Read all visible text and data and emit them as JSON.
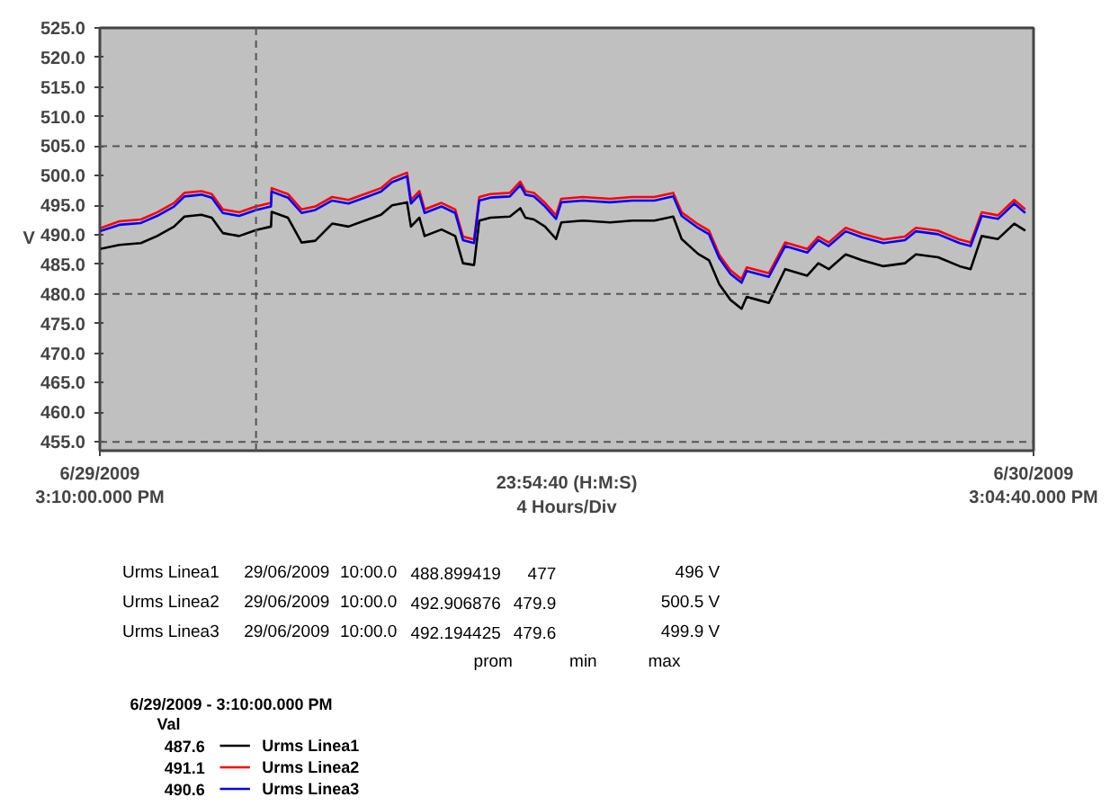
{
  "chart_data": {
    "type": "line",
    "xlabel": "23:54:40 (H:M:S)\n4 Hours/Div",
    "ylabel": "V",
    "legend_title": "6/29/2009 - 3:10:00.000 PM",
    "legend": "bottom left",
    "grid": false,
    "line_style": "solid",
    "marker": "none",
    "xlim": [
      "2009-06-29T15:10",
      "2009-06-30T15:04:40"
    ],
    "xticks": [
      {
        "value": "2009-06-29T15:10",
        "label": "6/29/2009\n3:10:00.000 PM"
      },
      {
        "value": "2009-06-30T15:04:40",
        "label": "6/30/2009\n3:04:40.000 PM"
      }
    ],
    "ylim": [
      453.5,
      525
    ],
    "yticks": [
      {
        "value": 455,
        "label": "455.0"
      },
      {
        "value": 460,
        "label": "460.0"
      },
      {
        "value": 465,
        "label": "465.0"
      },
      {
        "value": 470,
        "label": "470.0"
      },
      {
        "value": 475,
        "label": "475.0"
      },
      {
        "value": 480,
        "label": "480.0"
      },
      {
        "value": 485,
        "label": "485.0"
      },
      {
        "value": 490,
        "label": "490.0"
      },
      {
        "value": 495,
        "label": "495.0"
      },
      {
        "value": 500,
        "label": "500.0"
      },
      {
        "value": 505,
        "label": "505.0"
      },
      {
        "value": 510,
        "label": "510.0"
      },
      {
        "value": 515,
        "label": "515.0"
      },
      {
        "value": 520,
        "label": "520.0"
      },
      {
        "value": 525,
        "label": "525.0"
      }
    ],
    "ref_lines": [
      {
        "axis": "y",
        "value": 455,
        "line_style": "dashed",
        "color": "#555555"
      },
      {
        "axis": "y",
        "value": 480,
        "line_style": "dashed",
        "color": "#555555"
      },
      {
        "axis": "y",
        "value": 505,
        "line_style": "dashed",
        "color": "#555555"
      },
      {
        "axis": "x",
        "value": "2009-06-29T19:10",
        "line_style": "dashed",
        "color": "#555555"
      }
    ],
    "annotations": [
      "Urms Linea1\t29/06/2009\t10:00.0\t488.899419\t477\t496 V",
      "Urms Linea2\t29/06/2009\t10:00.0\t492.906876\t479.9\t500.5 V",
      "Urms Linea3\t29/06/2009\t10:00.0\t492.194425\t479.6\t499.9 V",
      "\t\t\tprom\tmin\tmax",
      "Val",
      "487.6",
      "491.1",
      "490.6"
    ],
    "x": [
      "2009-06-29T15:10",
      "2009-06-29T15:40",
      "2009-06-29T16:13",
      "2009-06-29T16:38",
      "2009-06-29T17:04",
      "2009-06-29T17:20",
      "2009-06-29T17:46",
      "2009-06-29T18:02",
      "2009-06-29T18:19",
      "2009-06-29T18:44",
      "2009-06-29T19:10",
      "2009-06-29T19:33",
      "2009-06-29T19:34",
      "2009-06-29T19:59",
      "2009-06-29T20:20",
      "2009-06-29T20:41",
      "2009-06-29T21:07",
      "2009-06-29T21:32",
      "2009-06-29T21:57",
      "2009-06-29T22:22",
      "2009-06-29T22:39",
      "2009-06-29T23:02",
      "2009-06-29T23:08",
      "2009-06-29T23:21",
      "2009-06-29T23:29",
      "2009-06-29T23:55",
      "2009-06-30T00:16",
      "2009-06-30T00:28",
      "2009-06-30T00:45",
      "2009-06-30T00:53",
      "2009-06-30T01:10",
      "2009-06-30T01:40",
      "2009-06-30T01:56",
      "2009-06-30T02:04",
      "2009-06-30T02:17",
      "2009-06-30T02:34",
      "2009-06-30T02:51",
      "2009-06-30T02:59",
      "2009-06-30T03:32",
      "2009-06-30T04:14",
      "2009-06-30T04:48",
      "2009-06-30T05:22",
      "2009-06-30T05:51",
      "2009-06-30T06:04",
      "2009-06-30T06:29",
      "2009-06-30T06:46",
      "2009-06-30T07:02",
      "2009-06-30T07:19",
      "2009-06-30T07:36",
      "2009-06-30T07:44",
      "2009-06-30T08:01",
      "2009-06-30T08:18",
      "2009-06-30T08:43",
      "2009-06-30T09:17",
      "2009-06-30T09:34",
      "2009-06-30T09:50",
      "2009-06-30T10:16",
      "2009-06-30T10:41",
      "2009-06-30T11:14",
      "2009-06-30T11:47",
      "2009-06-30T12:04",
      "2009-06-30T12:38",
      "2009-06-30T13:11",
      "2009-06-30T13:28",
      "2009-06-30T13:45",
      "2009-06-30T14:10",
      "2009-06-30T14:35",
      "2009-06-30T14:52"
    ],
    "series": [
      {
        "name": "Urms Linea1",
        "color": "#000000",
        "values": [
          487.6,
          488.3,
          488.6,
          489.8,
          491.4,
          493.1,
          493.4,
          492.9,
          490.3,
          489.8,
          490.8,
          491.4,
          493.9,
          492.9,
          488.7,
          489.0,
          491.9,
          491.4,
          492.4,
          493.4,
          495.0,
          495.5,
          491.4,
          492.9,
          489.8,
          490.9,
          489.8,
          485.2,
          484.9,
          492.4,
          492.9,
          493.1,
          494.5,
          492.9,
          492.6,
          491.4,
          489.3,
          492.1,
          492.4,
          492.1,
          492.4,
          492.4,
          493.1,
          489.3,
          486.8,
          485.7,
          481.6,
          479.0,
          477.5,
          479.5,
          479.0,
          478.5,
          484.2,
          483.1,
          485.2,
          484.2,
          486.7,
          485.7,
          484.7,
          485.2,
          486.7,
          486.2,
          484.7,
          484.2,
          489.8,
          489.3,
          491.9,
          490.7
        ]
      },
      {
        "name": "Urms Linea2",
        "color": "#ff0000",
        "values": [
          491.1,
          492.3,
          492.6,
          493.8,
          495.4,
          497.1,
          497.4,
          496.9,
          494.3,
          493.8,
          494.8,
          495.4,
          497.9,
          496.9,
          494.3,
          494.8,
          496.4,
          495.9,
          496.9,
          497.9,
          499.5,
          500.5,
          495.9,
          497.4,
          494.3,
          495.4,
          494.3,
          489.7,
          489.2,
          496.4,
          496.9,
          497.1,
          499.0,
          497.4,
          497.1,
          495.4,
          493.3,
          496.1,
          496.4,
          496.1,
          496.4,
          496.4,
          497.1,
          493.8,
          491.8,
          490.7,
          486.6,
          484.0,
          482.5,
          484.5,
          484.0,
          483.5,
          488.7,
          487.6,
          489.7,
          488.7,
          491.2,
          490.2,
          489.2,
          489.7,
          491.2,
          490.7,
          489.2,
          488.7,
          493.8,
          493.3,
          495.9,
          494.3
        ]
      },
      {
        "name": "Urms Linea3",
        "color": "#0000ff",
        "values": [
          490.6,
          491.7,
          492.0,
          493.2,
          494.8,
          496.5,
          496.8,
          496.3,
          493.7,
          493.2,
          494.2,
          494.8,
          497.3,
          496.3,
          493.7,
          494.2,
          495.8,
          495.3,
          496.3,
          497.3,
          498.9,
          499.9,
          495.3,
          496.8,
          493.7,
          494.8,
          493.7,
          489.1,
          488.6,
          495.8,
          496.3,
          496.5,
          498.4,
          496.8,
          496.5,
          494.8,
          492.7,
          495.5,
          495.8,
          495.5,
          495.8,
          495.8,
          496.5,
          493.2,
          491.2,
          490.1,
          486.0,
          483.4,
          481.9,
          483.9,
          483.4,
          482.9,
          488.1,
          487.0,
          489.1,
          488.1,
          490.6,
          489.6,
          488.6,
          489.1,
          490.6,
          490.1,
          488.6,
          488.1,
          493.2,
          492.7,
          495.3,
          493.7
        ]
      }
    ]
  }
}
